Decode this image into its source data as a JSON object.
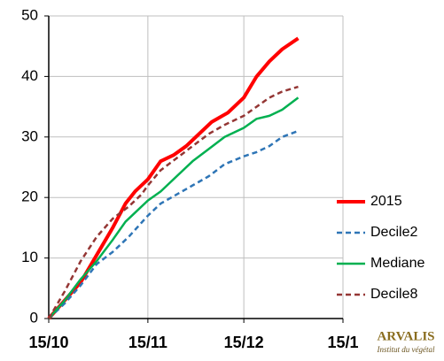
{
  "chart_data": {
    "type": "line",
    "xlim": [
      0,
      92
    ],
    "xticks": [
      {
        "value": 0,
        "label": "15/10"
      },
      {
        "value": 31,
        "label": "15/11"
      },
      {
        "value": 61,
        "label": "15/12"
      },
      {
        "value": 92,
        "label": "15/1"
      }
    ],
    "ylim": [
      0,
      50
    ],
    "yticks": [
      0,
      10,
      20,
      30,
      40,
      50
    ],
    "grid": true,
    "legend": "right",
    "series": [
      {
        "name": "2015",
        "color": "#ff0000",
        "width": 4,
        "dashed": false,
        "x": [
          0,
          5,
          10,
          15,
          20,
          24,
          27,
          31,
          35,
          39,
          43,
          47,
          51,
          56,
          61,
          65,
          69,
          73,
          78
        ],
        "values": [
          0,
          3,
          6,
          10.5,
          15,
          19,
          21,
          23,
          26,
          27,
          28.5,
          30.5,
          32.5,
          34,
          36.5,
          40,
          42.5,
          44.5,
          46.3
        ]
      },
      {
        "name": "Decile2",
        "color": "#2e75b6",
        "width": 2.5,
        "dashed": true,
        "x": [
          0,
          5,
          10,
          15,
          20,
          25,
          31,
          35,
          40,
          45,
          50,
          55,
          61,
          65,
          69,
          73,
          78
        ],
        "values": [
          0,
          2.5,
          5.5,
          9,
          11,
          13.5,
          17,
          19,
          20.5,
          22,
          23.5,
          25.5,
          26.8,
          27.5,
          28.5,
          30,
          31
        ]
      },
      {
        "name": "Mediane",
        "color": "#00b050",
        "width": 2.5,
        "dashed": false,
        "x": [
          0,
          5,
          10,
          15,
          20,
          24,
          27,
          31,
          35,
          40,
          45,
          50,
          55,
          61,
          65,
          69,
          73,
          78
        ],
        "values": [
          0,
          3,
          6.5,
          9.5,
          13,
          16,
          17.5,
          19.5,
          21,
          23.5,
          26,
          28,
          30,
          31.5,
          33,
          33.5,
          34.5,
          36.5
        ]
      },
      {
        "name": "Decile8",
        "color": "#943634",
        "width": 2.5,
        "dashed": true,
        "x": [
          0,
          5,
          10,
          15,
          20,
          25,
          29,
          31,
          35,
          40,
          45,
          50,
          55,
          61,
          65,
          69,
          73,
          78
        ],
        "values": [
          0,
          4.5,
          9.5,
          13.5,
          16.5,
          18.5,
          20.5,
          22,
          24.5,
          26.5,
          28.5,
          30.5,
          32,
          33.5,
          35,
          36.5,
          37.5,
          38.3
        ]
      }
    ],
    "logo": {
      "name": "ARVALIS",
      "subtitle": "Institut du végétal"
    }
  }
}
